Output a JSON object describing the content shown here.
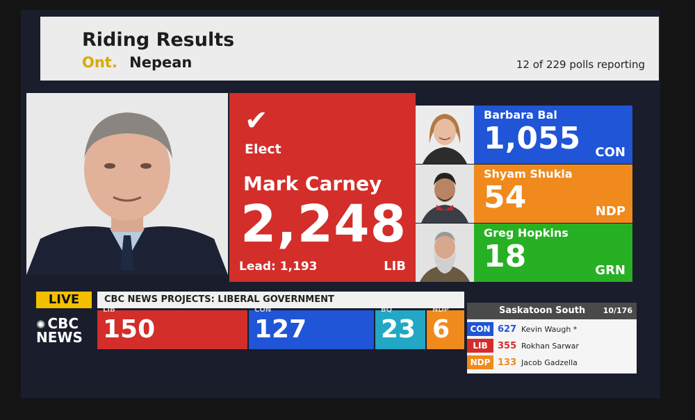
{
  "header": {
    "title": "Riding Results",
    "province": "Ont.",
    "riding": "Nepean",
    "polls_reporting": "12 of 229 polls reporting"
  },
  "winner": {
    "status": "Elect",
    "name": "Mark Carney",
    "votes": "2,248",
    "lead": "Lead: 1,193",
    "party": "LIB",
    "color": "#d32e2a"
  },
  "candidates": [
    {
      "name": "Barbara Bal",
      "votes": "1,055",
      "party": "CON",
      "color": "#1f55d6"
    },
    {
      "name": "Shyam Shukla",
      "votes": "54",
      "party": "NDP",
      "color": "#f08a1c"
    },
    {
      "name": "Greg Hopkins",
      "votes": "18",
      "party": "GRN",
      "color": "#28b024"
    }
  ],
  "ticker": {
    "live": "LIVE",
    "logo_line1": "CBC",
    "logo_line2": "NEWS",
    "projection": "CBC NEWS PROJECTS: LIBERAL GOVERNMENT",
    "seats": [
      {
        "party": "LIB",
        "value": "150",
        "color": "#d32e2a"
      },
      {
        "party": "CON",
        "value": "127",
        "color": "#1f55d6"
      },
      {
        "party": "BQ",
        "value": "23",
        "color": "#22a7c4"
      },
      {
        "party": "NDP",
        "value": "6",
        "color": "#f08a1c"
      }
    ]
  },
  "local_riding": {
    "title": "Saskatoon South",
    "polls": "10/176",
    "rows": [
      {
        "party": "CON",
        "votes": "627",
        "name": "Kevin Waugh *",
        "color": "#1f55d6"
      },
      {
        "party": "LIB",
        "votes": "355",
        "name": "Rokhan Sarwar",
        "color": "#d32e2a"
      },
      {
        "party": "NDP",
        "votes": "133",
        "name": "Jacob Gadzella",
        "color": "#f08a1c"
      }
    ]
  }
}
